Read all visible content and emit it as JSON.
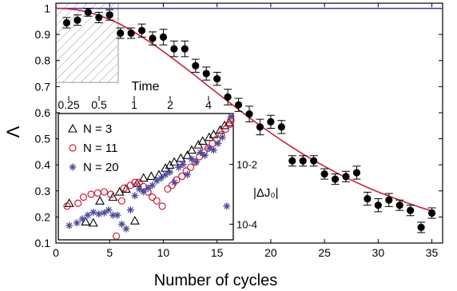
{
  "chart_data": [
    {
      "type": "scatter",
      "xlabel": "Number of cycles",
      "ylabel": "Λ",
      "xlim": [
        0,
        36
      ],
      "ylim": [
        0.1,
        1.02
      ],
      "xticks": [
        "0",
        "5",
        "10",
        "15",
        "20",
        "25",
        "30",
        "35"
      ],
      "yticks": [
        "0.1",
        "0.2",
        "0.3",
        "0.4",
        "0.5",
        "0.6",
        "0.7",
        "0.8",
        "0.9",
        "1"
      ],
      "top_axis_label": "Time",
      "top_axis_ticks": [
        "0.25",
        "0.5",
        "1",
        "2",
        "4"
      ],
      "grid": false,
      "series": [
        {
          "kind": "points-with-error-bars",
          "x": [
            1,
            2,
            3,
            4,
            5,
            6,
            7,
            8,
            9,
            10,
            11,
            12,
            13,
            14,
            15,
            16,
            17,
            18,
            19,
            20,
            21,
            22,
            23,
            24,
            25,
            26,
            27,
            28,
            29,
            30,
            31,
            32,
            33,
            34,
            35
          ],
          "y": [
            0.945,
            0.955,
            0.985,
            0.965,
            0.975,
            0.905,
            0.905,
            0.915,
            0.885,
            0.89,
            0.845,
            0.845,
            0.78,
            0.75,
            0.73,
            0.66,
            0.63,
            0.595,
            0.545,
            0.565,
            0.545,
            0.415,
            0.415,
            0.415,
            0.365,
            0.345,
            0.355,
            0.37,
            0.27,
            0.245,
            0.265,
            0.245,
            0.225,
            0.16,
            0.215
          ],
          "err": [
            0.02,
            0.02,
            0.015,
            0.02,
            0.02,
            0.02,
            0.02,
            0.025,
            0.025,
            0.03,
            0.03,
            0.03,
            0.025,
            0.025,
            0.025,
            0.03,
            0.025,
            0.03,
            0.03,
            0.025,
            0.025,
            0.02,
            0.02,
            0.02,
            0.02,
            0.02,
            0.02,
            0.025,
            0.025,
            0.025,
            0.025,
            0.02,
            0.02,
            0.02,
            0.02
          ],
          "color": "#000000"
        },
        {
          "kind": "fit-curve",
          "x": [
            0,
            1,
            2,
            3,
            4,
            5,
            6,
            7,
            8,
            9,
            10,
            11,
            12,
            13,
            14,
            15,
            16,
            17,
            18,
            19,
            20,
            21,
            22,
            23,
            24,
            25,
            26,
            27,
            28,
            29,
            30,
            31,
            32,
            33,
            34,
            35
          ],
          "y": [
            1.0,
            0.999,
            0.994,
            0.986,
            0.974,
            0.958,
            0.939,
            0.916,
            0.891,
            0.864,
            0.835,
            0.804,
            0.773,
            0.741,
            0.708,
            0.676,
            0.644,
            0.612,
            0.581,
            0.551,
            0.522,
            0.494,
            0.467,
            0.441,
            0.417,
            0.394,
            0.372,
            0.351,
            0.332,
            0.313,
            0.296,
            0.28,
            0.264,
            0.25,
            0.236,
            0.223
          ],
          "color": "#d01c3a"
        },
        {
          "kind": "reference-line",
          "y": 1.0,
          "color": "#3b3b9a"
        }
      ],
      "shaded_region_x": [
        0,
        5.8
      ]
    },
    {
      "type": "scatter",
      "inset": true,
      "ylabel": "|ΔJ₀|",
      "xlim": [
        0,
        16
      ],
      "yscale": "log",
      "ylim": [
        3e-05,
        0.5
      ],
      "yticks": [
        "10-4",
        "10-2"
      ],
      "legend_position": "top-left",
      "legend": [
        "N = 3",
        "N = 11",
        "N = 20"
      ],
      "series": [
        {
          "name": "N = 3",
          "marker": "triangle",
          "color": "#000000",
          "x": [
            1.0,
            2.5,
            3.2,
            3.8,
            5.0,
            5.6,
            6.2,
            7.0,
            7.2,
            7.8,
            8.5,
            9.2,
            9.8,
            10.2,
            10.6,
            11.2,
            11.8,
            12.2,
            12.8,
            13.2,
            13.8,
            14.2,
            14.8,
            15.2,
            15.6
          ],
          "y": [
            0.0005,
            0.00012,
            0.00011,
            0.0006,
            0.0008,
            0.0012,
            0.0015,
            0.00013,
            0.0023,
            0.0035,
            0.004,
            0.0045,
            0.0075,
            0.0095,
            0.012,
            0.016,
            0.02,
            0.03,
            0.045,
            0.06,
            0.08,
            0.1,
            0.14,
            0.2,
            0.25
          ]
        },
        {
          "name": "N = 11",
          "marker": "circle",
          "color": "#d01c3a",
          "x": [
            0.8,
            1.8,
            2.3,
            3.0,
            3.6,
            4.2,
            4.8,
            5.3,
            5.8,
            6.0,
            6.6,
            7.0,
            7.4,
            7.8,
            8.2,
            8.6,
            9.0,
            9.5,
            10.0,
            10.4,
            10.8,
            11.3,
            11.7,
            12.1,
            12.5,
            12.9,
            13.3,
            13.7,
            14.1,
            14.5,
            14.9,
            15.3,
            15.7,
            15.9
          ],
          "y": [
            0.0004,
            0.0005,
            0.0008,
            0.001,
            0.0011,
            0.0012,
            0.001,
            4e-05,
            0.0006,
            0.0016,
            0.002,
            0.0025,
            0.0025,
            0.0018,
            0.0012,
            0.0008,
            0.0006,
            0.0004,
            0.0015,
            0.002,
            0.003,
            0.004,
            0.006,
            0.008,
            0.012,
            0.018,
            0.025,
            0.035,
            0.05,
            0.07,
            0.1,
            0.15,
            0.22,
            0.3
          ]
        },
        {
          "name": "N = 20",
          "marker": "star",
          "color": "#4a4a9a",
          "x": [
            1.0,
            1.7,
            2.2,
            2.7,
            3.2,
            3.7,
            4.2,
            4.6,
            5.0,
            5.4,
            5.8,
            6.2,
            6.6,
            7.0,
            7.4,
            7.8,
            8.2,
            8.6,
            9.0,
            9.4,
            9.8,
            10.2,
            10.6,
            11.0,
            11.4,
            11.8,
            12.2,
            12.6,
            13.0,
            13.4,
            13.8,
            14.2,
            14.6,
            15.0,
            15.4,
            15.8
          ],
          "y": [
            9e-05,
            0.00011,
            0.00015,
            0.0002,
            0.00025,
            0.00022,
            0.00024,
            0.0003,
            0.0002,
            0.0002,
            0.0001,
            7e-05,
            0.0003,
            0.0009,
            0.0015,
            0.0012,
            0.0016,
            0.002,
            0.0028,
            0.0035,
            0.0045,
            0.0055,
            0.0025,
            0.008,
            0.01,
            0.0045,
            0.015,
            0.012,
            0.025,
            0.02,
            0.035,
            0.03,
            0.05,
            0.08,
            0.0004,
            0.4
          ]
        }
      ]
    }
  ]
}
